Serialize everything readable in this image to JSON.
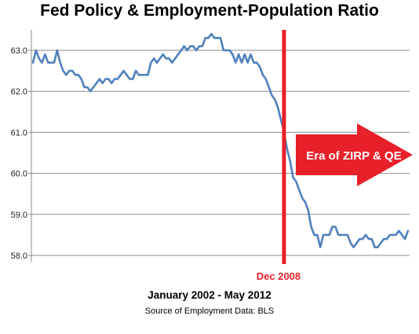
{
  "chart_data": {
    "type": "line",
    "title": "Fed Policy & Employment-Population Ratio",
    "xlabel": "January 2002 - May 2012",
    "ylabel": "",
    "source_note": "Source of Employment Data: BLS",
    "ylim": [
      57.8,
      63.5
    ],
    "yticks": [
      58.0,
      59.0,
      60.0,
      61.0,
      62.0,
      63.0
    ],
    "ytick_labels": [
      "58.0",
      "59.0",
      "60.0",
      "61.0",
      "62.0",
      "63.0"
    ],
    "grid": true,
    "colors": {
      "line": "#4f81bd",
      "marker": "#e8202a",
      "arrow": "#e8202a"
    },
    "series": [
      {
        "name": "",
        "x": [
          "2002-01",
          "2002-02",
          "2002-03",
          "2002-04",
          "2002-05",
          "2002-06",
          "2002-07",
          "2002-08",
          "2002-09",
          "2002-10",
          "2002-11",
          "2002-12",
          "2003-01",
          "2003-02",
          "2003-03",
          "2003-04",
          "2003-05",
          "2003-06",
          "2003-07",
          "2003-08",
          "2003-09",
          "2003-10",
          "2003-11",
          "2003-12",
          "2004-01",
          "2004-02",
          "2004-03",
          "2004-04",
          "2004-05",
          "2004-06",
          "2004-07",
          "2004-08",
          "2004-09",
          "2004-10",
          "2004-11",
          "2004-12",
          "2005-01",
          "2005-02",
          "2005-03",
          "2005-04",
          "2005-05",
          "2005-06",
          "2005-07",
          "2005-08",
          "2005-09",
          "2005-10",
          "2005-11",
          "2005-12",
          "2006-01",
          "2006-02",
          "2006-03",
          "2006-04",
          "2006-05",
          "2006-06",
          "2006-07",
          "2006-08",
          "2006-09",
          "2006-10",
          "2006-11",
          "2006-12",
          "2007-01",
          "2007-02",
          "2007-03",
          "2007-04",
          "2007-05",
          "2007-06",
          "2007-07",
          "2007-08",
          "2007-09",
          "2007-10",
          "2007-11",
          "2007-12",
          "2008-01",
          "2008-02",
          "2008-03",
          "2008-04",
          "2008-05",
          "2008-06",
          "2008-07",
          "2008-08",
          "2008-09",
          "2008-10",
          "2008-11",
          "2008-12",
          "2009-01",
          "2009-02",
          "2009-03",
          "2009-04",
          "2009-05",
          "2009-06",
          "2009-07",
          "2009-08",
          "2009-09",
          "2009-10",
          "2009-11",
          "2009-12",
          "2010-01",
          "2010-02",
          "2010-03",
          "2010-04",
          "2010-05",
          "2010-06",
          "2010-07",
          "2010-08",
          "2010-09",
          "2010-10",
          "2010-11",
          "2010-12",
          "2011-01",
          "2011-02",
          "2011-03",
          "2011-04",
          "2011-05",
          "2011-06",
          "2011-07",
          "2011-08",
          "2011-09",
          "2011-10",
          "2011-11",
          "2011-12",
          "2012-01",
          "2012-02",
          "2012-03",
          "2012-04",
          "2012-05"
        ],
        "values": [
          62.7,
          63.0,
          62.8,
          62.7,
          62.9,
          62.7,
          62.7,
          62.7,
          63.0,
          62.7,
          62.5,
          62.4,
          62.5,
          62.5,
          62.4,
          62.4,
          62.3,
          62.1,
          62.1,
          62.0,
          62.1,
          62.2,
          62.3,
          62.2,
          62.3,
          62.3,
          62.2,
          62.3,
          62.3,
          62.4,
          62.5,
          62.4,
          62.3,
          62.3,
          62.5,
          62.4,
          62.4,
          62.4,
          62.4,
          62.7,
          62.8,
          62.7,
          62.8,
          62.9,
          62.8,
          62.8,
          62.7,
          62.8,
          62.9,
          63.0,
          63.1,
          63.0,
          63.1,
          63.1,
          63.0,
          63.1,
          63.1,
          63.3,
          63.3,
          63.4,
          63.3,
          63.3,
          63.3,
          63.0,
          63.0,
          63.0,
          62.9,
          62.7,
          62.9,
          62.7,
          62.9,
          62.7,
          62.9,
          62.7,
          62.7,
          62.6,
          62.4,
          62.3,
          62.1,
          61.9,
          61.8,
          61.6,
          61.3,
          61.0,
          60.6,
          60.3,
          59.9,
          59.8,
          59.6,
          59.4,
          59.3,
          59.1,
          58.7,
          58.5,
          58.5,
          58.2,
          58.5,
          58.5,
          58.5,
          58.7,
          58.7,
          58.5,
          58.5,
          58.5,
          58.5,
          58.3,
          58.2,
          58.3,
          58.4,
          58.4,
          58.5,
          58.4,
          58.4,
          58.2,
          58.2,
          58.3,
          58.4,
          58.4,
          58.5,
          58.5,
          58.5,
          58.6,
          58.5,
          58.4,
          58.6
        ]
      }
    ],
    "annotations": [
      {
        "type": "vertical-line",
        "at": "2008-12",
        "label": "Dec 2008",
        "color": "#e8202a"
      },
      {
        "type": "arrow",
        "text": "Era of ZIRP & QE",
        "direction": "right",
        "color": "#e8202a",
        "text_color": "#ffffff"
      }
    ]
  }
}
